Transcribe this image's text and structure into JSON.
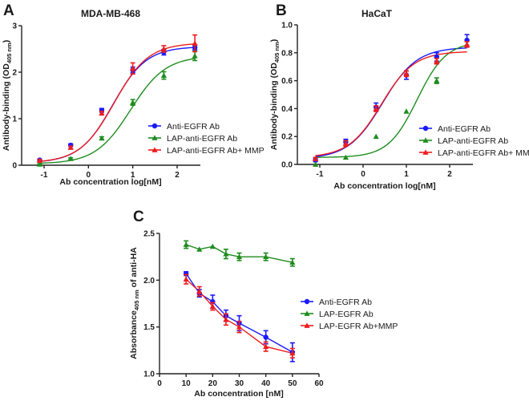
{
  "chart_data": [
    {
      "panel": "A",
      "type": "line",
      "fit": "sigmoid",
      "title": "MDA-MB-468",
      "xlabel": "Ab concentration log[nM]",
      "ylabel": "Antibody-binding (OD",
      "ylabel_sub": "405 nm",
      "ylabel_end": ")",
      "xlim": [
        -1.4,
        2.5
      ],
      "ylim": [
        0,
        3
      ],
      "xticks": [
        -1,
        0,
        1,
        2
      ],
      "yticks": [
        0,
        1,
        2,
        3
      ],
      "ytick_labels": [
        "0",
        "1",
        "2",
        "3"
      ],
      "legend_position": "bottom-right",
      "x": [
        -1.1,
        -0.4,
        0.3,
        1.0,
        1.7,
        2.4
      ],
      "series": [
        {
          "name": "Anti-EGFR Ab",
          "color": "#1a1aff",
          "marker": "circle",
          "values": [
            0.11,
            0.43,
            1.18,
            2.05,
            2.43,
            2.53
          ],
          "errors": [
            0.02,
            0.03,
            0.04,
            0.06,
            0.06,
            0.05
          ],
          "fit": {
            "bottom": 0.05,
            "top": 2.55,
            "logEC50": 0.55,
            "hill": 1.15
          }
        },
        {
          "name": "LAP-anti-EGFR Ab",
          "color": "#1e8c1e",
          "marker": "triangle",
          "values": [
            0.02,
            0.14,
            0.58,
            1.35,
            1.93,
            2.35
          ],
          "errors": [
            0.01,
            0.02,
            0.03,
            0.06,
            0.08,
            0.1
          ],
          "fit": {
            "bottom": 0.03,
            "top": 2.35,
            "logEC50": 0.95,
            "hill": 1.1
          }
        },
        {
          "name": "LAP-anti-EGFR Ab+ MMP",
          "color": "#ee1c1c",
          "marker": "triangle",
          "values": [
            0.1,
            0.38,
            1.12,
            2.08,
            2.5,
            2.62
          ],
          "errors": [
            0.02,
            0.03,
            0.04,
            0.12,
            0.07,
            0.18
          ],
          "fit": {
            "bottom": 0.05,
            "top": 2.63,
            "logEC50": 0.58,
            "hill": 1.12
          }
        }
      ]
    },
    {
      "panel": "B",
      "type": "line",
      "fit": "sigmoid",
      "title": "HaCaT",
      "xlabel": "Ab concentration log[nM]",
      "ylabel": "Antibody-binding (OD",
      "ylabel_sub": "405 nm",
      "ylabel_end": ")",
      "xlim": [
        -1.4,
        2.5
      ],
      "ylim": [
        0,
        1.0
      ],
      "xticks": [
        -1,
        0,
        1,
        2
      ],
      "yticks": [
        0,
        0.2,
        0.4,
        0.6,
        0.8,
        1.0
      ],
      "ytick_labels": [
        "0.0",
        "0.2",
        "0.4",
        "0.6",
        "0.8",
        "1.0"
      ],
      "legend_position": "bottom-right",
      "x": [
        -1.1,
        -0.4,
        0.3,
        1.0,
        1.7,
        2.4
      ],
      "series": [
        {
          "name": "Anti-EGFR Ab",
          "color": "#1a1aff",
          "marker": "circle",
          "values": [
            0.03,
            0.16,
            0.41,
            0.64,
            0.77,
            0.89
          ],
          "errors": [
            0.01,
            0.02,
            0.03,
            0.03,
            0.03,
            0.04
          ],
          "fit": {
            "bottom": 0.04,
            "top": 0.84,
            "logEC50": 0.45,
            "hill": 1.1
          }
        },
        {
          "name": "LAP-anti-EGFR Ab",
          "color": "#1e8c1e",
          "marker": "triangle",
          "values": [
            0.0,
            0.05,
            0.2,
            0.38,
            0.6,
            0.86
          ],
          "errors": [
            0.0,
            0.0,
            0.0,
            0.0,
            0.02,
            0.0
          ],
          "fit": {
            "bottom": 0.05,
            "top": 0.88,
            "logEC50": 1.25,
            "hill": 1.3
          }
        },
        {
          "name": "LAP-anti-EGFR Ab+ MMP",
          "color": "#ee1c1c",
          "marker": "triangle",
          "values": [
            0.04,
            0.15,
            0.4,
            0.65,
            0.74,
            0.86
          ],
          "errors": [
            0.01,
            0.02,
            0.02,
            0.02,
            0.02,
            0.02
          ],
          "fit": {
            "bottom": 0.05,
            "top": 0.81,
            "logEC50": 0.42,
            "hill": 1.15
          }
        }
      ]
    },
    {
      "panel": "C",
      "type": "line",
      "fit": "connect",
      "title": "",
      "xlabel": "Ab concentration [nM]",
      "ylabel": "Absorbance",
      "ylabel_sub": "405 nm",
      "ylabel_end": " of anti-HA",
      "xlim": [
        0,
        60
      ],
      "ylim": [
        1.0,
        2.5
      ],
      "xticks": [
        0,
        10,
        20,
        30,
        40,
        50,
        60
      ],
      "yticks": [
        1.0,
        1.5,
        2.0,
        2.5
      ],
      "ytick_labels": [
        "1.0",
        "1.5",
        "2.0",
        "2.5"
      ],
      "legend_position": "right",
      "x": [
        10,
        15,
        20,
        25,
        30,
        40,
        50
      ],
      "series": [
        {
          "name": "Anti-EGFR Ab",
          "color": "#1a1aff",
          "marker": "circle",
          "values": [
            2.07,
            1.86,
            1.77,
            1.62,
            1.54,
            1.39,
            1.23
          ],
          "errors": [
            0.02,
            0.04,
            0.07,
            0.06,
            0.08,
            0.07,
            0.1
          ]
        },
        {
          "name": "LAP-EGFR Ab",
          "color": "#1e8c1e",
          "marker": "triangle",
          "values": [
            2.38,
            2.33,
            2.36,
            2.28,
            2.25,
            2.25,
            2.19
          ],
          "errors": [
            0.04,
            0.0,
            0.0,
            0.05,
            0.04,
            0.04,
            0.04
          ]
        },
        {
          "name": "LAP-EGFR Ab+MMP",
          "color": "#ee1c1c",
          "marker": "triangle",
          "values": [
            2.01,
            1.88,
            1.72,
            1.58,
            1.5,
            1.29,
            1.22
          ],
          "errors": [
            0.05,
            0.05,
            0.04,
            0.06,
            0.06,
            0.05,
            0.05
          ]
        }
      ]
    }
  ]
}
